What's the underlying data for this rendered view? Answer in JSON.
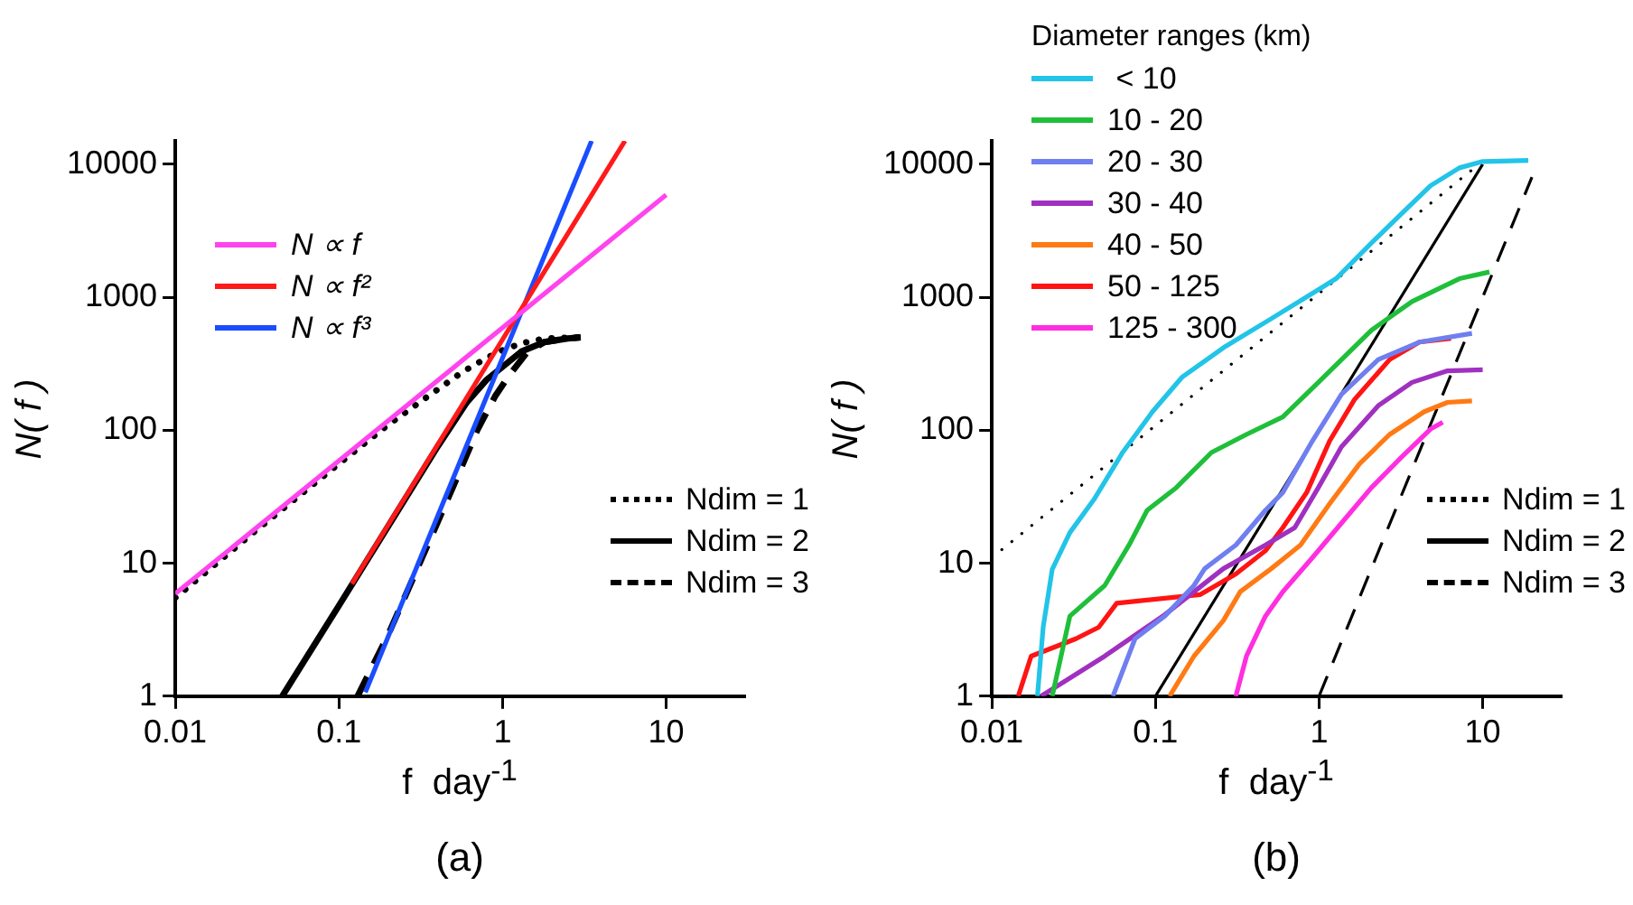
{
  "chart_data": [
    {
      "type": "line",
      "xlabel": "f  day$^{-1}$",
      "ylabel": "N( f )",
      "log": "xy",
      "xlim": [
        0.01,
        30
      ],
      "ylim": [
        1,
        15000
      ],
      "xticks": [
        0.01,
        0.1,
        1,
        10
      ],
      "yticks": [
        1,
        10,
        100,
        1000,
        10000
      ],
      "legend": "top right",
      "annotations": [
        "(a)"
      ],
      "series": [
        {
          "name": "N ∝ f",
          "color": "#ff44ee",
          "x": [
            0.01,
            10
          ],
          "values": [
            5.9,
            5900
          ]
        },
        {
          "name": "N ∝ f²",
          "color": "#ff1a1a",
          "x": [
            0.12,
            5.6
          ],
          "values": [
            7,
            15000
          ]
        },
        {
          "name": "N ∝ f³",
          "color": "#1a4dff",
          "x": [
            0.145,
            3.5
          ],
          "values": [
            1.07,
            15000
          ]
        },
        {
          "name": "Ndim = 1",
          "color": "#000000",
          "line_style": "dotted",
          "x": [
            0.01,
            0.03,
            0.1,
            0.2,
            0.35,
            0.57,
            0.8,
            1,
            1.3,
            1.8,
            3
          ],
          "values": [
            5.5,
            17,
            56,
            110,
            180,
            275,
            350,
            400,
            450,
            490,
            500
          ]
        },
        {
          "name": "Ndim = 2",
          "color": "#000000",
          "line_style": "solid",
          "x": [
            0.045,
            0.1,
            0.2,
            0.4,
            0.6,
            0.8,
            1,
            1.3,
            1.8,
            2.5,
            3
          ],
          "values": [
            1,
            4.8,
            19,
            75,
            160,
            240,
            300,
            390,
            460,
            490,
            500
          ]
        },
        {
          "name": "Ndim = 3",
          "color": "#000000",
          "line_style": "dashed",
          "x": [
            0.13,
            0.2,
            0.3,
            0.5,
            0.7,
            0.9,
            1.1,
            1.4,
            1.8,
            2.5,
            3
          ],
          "values": [
            1,
            2.9,
            9,
            38,
            100,
            180,
            260,
            380,
            460,
            490,
            500
          ]
        }
      ]
    },
    {
      "type": "line",
      "xlabel": "f  day$^{-1}$",
      "ylabel": "N( f )",
      "log": "xy",
      "xlim": [
        0.01,
        30
      ],
      "ylim": [
        1,
        15000
      ],
      "xticks": [
        0.01,
        0.1,
        1,
        10
      ],
      "yticks": [
        1,
        10,
        100,
        1000,
        10000
      ],
      "legend": "top right",
      "legend_title": "Diameter ranges (km)",
      "annotations": [
        "(b)"
      ],
      "series": [
        {
          "name": " < 10",
          "color": "#22c4e8",
          "x": [
            0.019,
            0.0206,
            0.0234,
            0.03,
            0.042,
            0.063,
            0.096,
            0.146,
            0.26,
            0.51,
            0.99,
            1.27,
            2.09,
            3.16,
            4.8,
            7.2,
            10,
            19
          ],
          "values": [
            1,
            3.3,
            9,
            17,
            30,
            68,
            138,
            252,
            417,
            690,
            1140,
            1380,
            2560,
            4200,
            6900,
            9400,
            10500,
            10700
          ]
        },
        {
          "name": "10 - 20",
          "color": "#1fbf3a",
          "x": [
            0.0234,
            0.03,
            0.049,
            0.069,
            0.089,
            0.134,
            0.22,
            0.36,
            0.6,
            0.99,
            2.09,
            3.7,
            7.2,
            11
          ],
          "values": [
            1,
            4,
            6.8,
            13.7,
            25,
            37,
            68,
            93,
            126,
            229,
            565,
            930,
            1380,
            1550
          ]
        },
        {
          "name": "20 - 30",
          "color": "#6f7ff0",
          "x": [
            0.055,
            0.075,
            0.114,
            0.172,
            0.2,
            0.31,
            0.47,
            0.6,
            0.91,
            1.37,
            2.3,
            4.1,
            8.6
          ],
          "values": [
            1,
            2.7,
            4,
            6.8,
            9.1,
            13.7,
            25,
            34,
            83,
            186,
            340,
            460,
            535
          ]
        },
        {
          "name": "30 - 40",
          "color": "#a030c0",
          "x": [
            0.02,
            0.049,
            0.114,
            0.26,
            0.47,
            0.71,
            0.99,
            1.37,
            2.3,
            3.7,
            6.1,
            10
          ],
          "values": [
            1,
            2,
            4.1,
            9.1,
            13.7,
            18.5,
            37,
            75,
            153,
            229,
            280,
            285
          ]
        },
        {
          "name": "40 - 50",
          "color": "#ff7a14",
          "x": [
            0.122,
            0.172,
            0.26,
            0.33,
            0.51,
            0.77,
            1.16,
            1.77,
            2.7,
            4.4,
            6.1,
            8.6
          ],
          "values": [
            1,
            2,
            3.7,
            6.1,
            9.1,
            13.7,
            28,
            56,
            93,
            138,
            162,
            166
          ]
        },
        {
          "name": "50 - 125",
          "color": "#ff1414",
          "x": [
            0.0145,
            0.0174,
            0.0326,
            0.045,
            0.058,
            0.187,
            0.31,
            0.47,
            0.6,
            0.84,
            1.16,
            1.64,
            2.7,
            4.1,
            6.4
          ],
          "values": [
            1,
            2,
            2.7,
            3.3,
            5,
            5.8,
            8.3,
            12.4,
            18.5,
            34,
            83,
            169,
            340,
            460,
            490
          ]
        },
        {
          "name": "125 - 300",
          "color": "#ff2ee0",
          "x": [
            0.31,
            0.36,
            0.47,
            0.6,
            0.91,
            1.37,
            2.09,
            3.16,
            4.8,
            5.7
          ],
          "values": [
            1,
            2,
            4,
            6.1,
            11,
            20,
            37,
            62,
            102,
            115
          ]
        },
        {
          "name": "Ndim = 1",
          "color": "#000000",
          "line_style": "dotted",
          "x": [
            0.01,
            9
          ],
          "values": [
            11,
            9500
          ]
        },
        {
          "name": "Ndim = 2",
          "color": "#000000",
          "line_style": "solid",
          "x": [
            0.1,
            10
          ],
          "values": [
            1,
            10000
          ]
        },
        {
          "name": "Ndim = 3",
          "color": "#000000",
          "line_style": "dashed",
          "x": [
            1,
            20
          ],
          "values": [
            1,
            8000
          ]
        }
      ]
    }
  ]
}
